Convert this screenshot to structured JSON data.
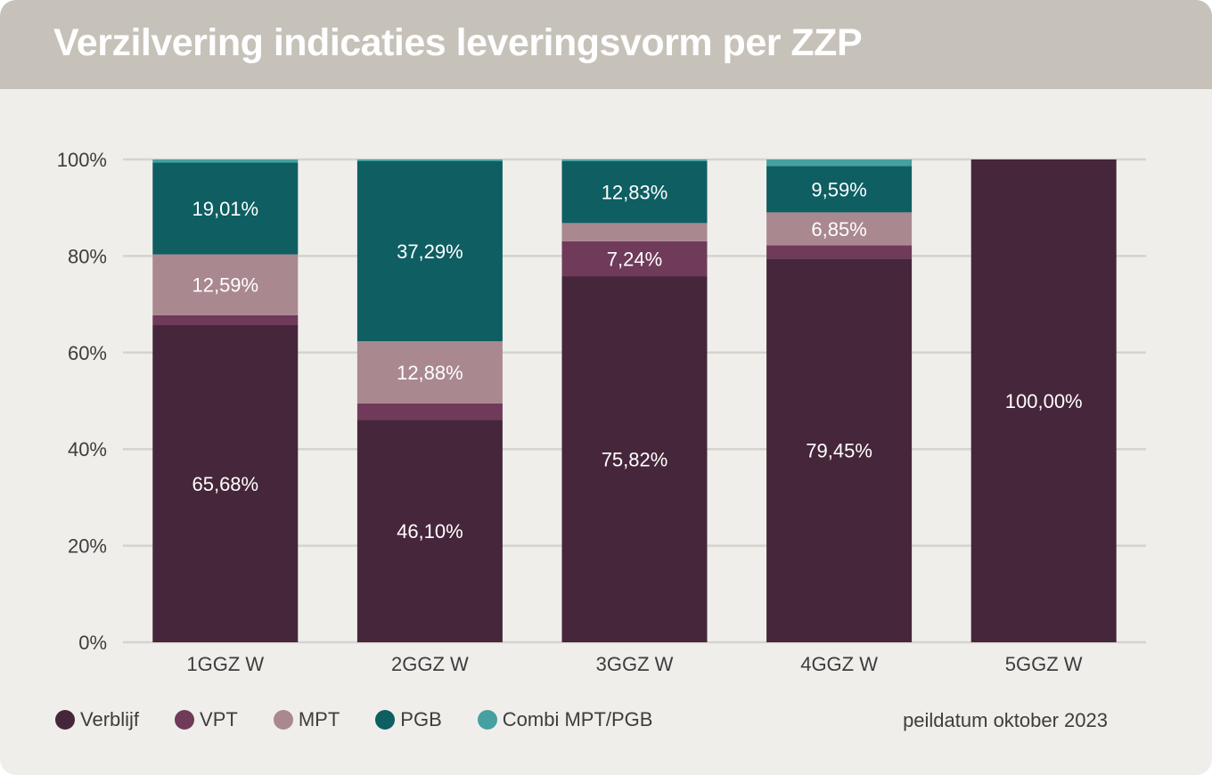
{
  "title": "Verzilvering indicaties leveringsvorm per ZZP",
  "footnote": "peildatum oktober 2023",
  "legend": [
    {
      "label": "Verblijf",
      "color": "#46263a"
    },
    {
      "label": "VPT",
      "color": "#703a5a"
    },
    {
      "label": "MPT",
      "color": "#a98890"
    },
    {
      "label": "PGB",
      "color": "#0e5e62"
    },
    {
      "label": "Combi MPT/PGB",
      "color": "#46a0a0"
    }
  ],
  "chart_data": {
    "type": "bar",
    "stacked": true,
    "categories": [
      "1GGZ W",
      "2GGZ W",
      "3GGZ W",
      "4GGZ W",
      "5GGZ W"
    ],
    "ylim": [
      0,
      100
    ],
    "yticks": [
      "0%",
      "20%",
      "40%",
      "60%",
      "80%",
      "100%"
    ],
    "grid": true,
    "legend_position": "bottom-left",
    "series": [
      {
        "name": "Verblijf",
        "values": [
          65.68,
          46.1,
          75.82,
          79.45,
          100.0
        ],
        "labels": [
          "65,68%",
          "46,10%",
          "75,82%",
          "79,45%",
          "100,00%"
        ]
      },
      {
        "name": "VPT",
        "values": [
          2.07,
          3.36,
          7.24,
          2.74,
          0
        ],
        "labels": [
          "",
          "",
          "7,24%",
          "",
          ""
        ]
      },
      {
        "name": "MPT",
        "values": [
          12.59,
          12.88,
          3.77,
          6.85,
          0
        ],
        "labels": [
          "12,59%",
          "12,88%",
          "",
          "6,85%",
          ""
        ]
      },
      {
        "name": "PGB",
        "values": [
          19.01,
          37.29,
          12.83,
          9.59,
          0
        ],
        "labels": [
          "19,01%",
          "37,29%",
          "12,83%",
          "9,59%",
          ""
        ]
      },
      {
        "name": "Combi MPT/PGB",
        "values": [
          0.65,
          0.37,
          0.34,
          1.37,
          0
        ],
        "labels": [
          "",
          "",
          "",
          "",
          ""
        ]
      }
    ]
  }
}
